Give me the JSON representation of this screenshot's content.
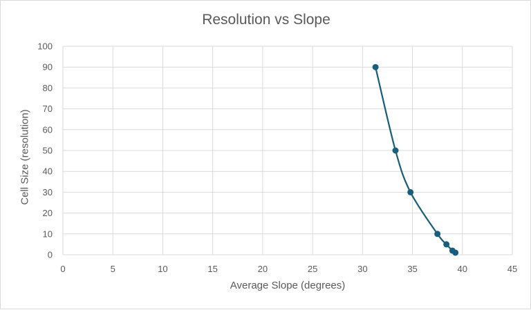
{
  "chart_data": {
    "type": "scatter",
    "title": "Resolution vs Slope",
    "xlabel": "Average Slope (degrees)",
    "ylabel": "Cell Size (resolution)",
    "xlim": [
      0,
      45
    ],
    "ylim": [
      0,
      100
    ],
    "xticks": [
      0,
      5,
      10,
      15,
      20,
      25,
      30,
      35,
      40,
      45
    ],
    "yticks": [
      0,
      10,
      20,
      30,
      40,
      50,
      60,
      70,
      80,
      90,
      100
    ],
    "grid": true,
    "smooth_line": true,
    "series": [
      {
        "points": [
          {
            "x": 31.3,
            "y": 90
          },
          {
            "x": 33.3,
            "y": 50
          },
          {
            "x": 34.8,
            "y": 30
          },
          {
            "x": 37.5,
            "y": 10
          },
          {
            "x": 38.4,
            "y": 5
          },
          {
            "x": 39.0,
            "y": 2
          },
          {
            "x": 39.3,
            "y": 1
          }
        ]
      }
    ],
    "colors": {
      "series": "#1a5e7e",
      "grid": "#d9d9d9",
      "text": "#595959"
    }
  }
}
